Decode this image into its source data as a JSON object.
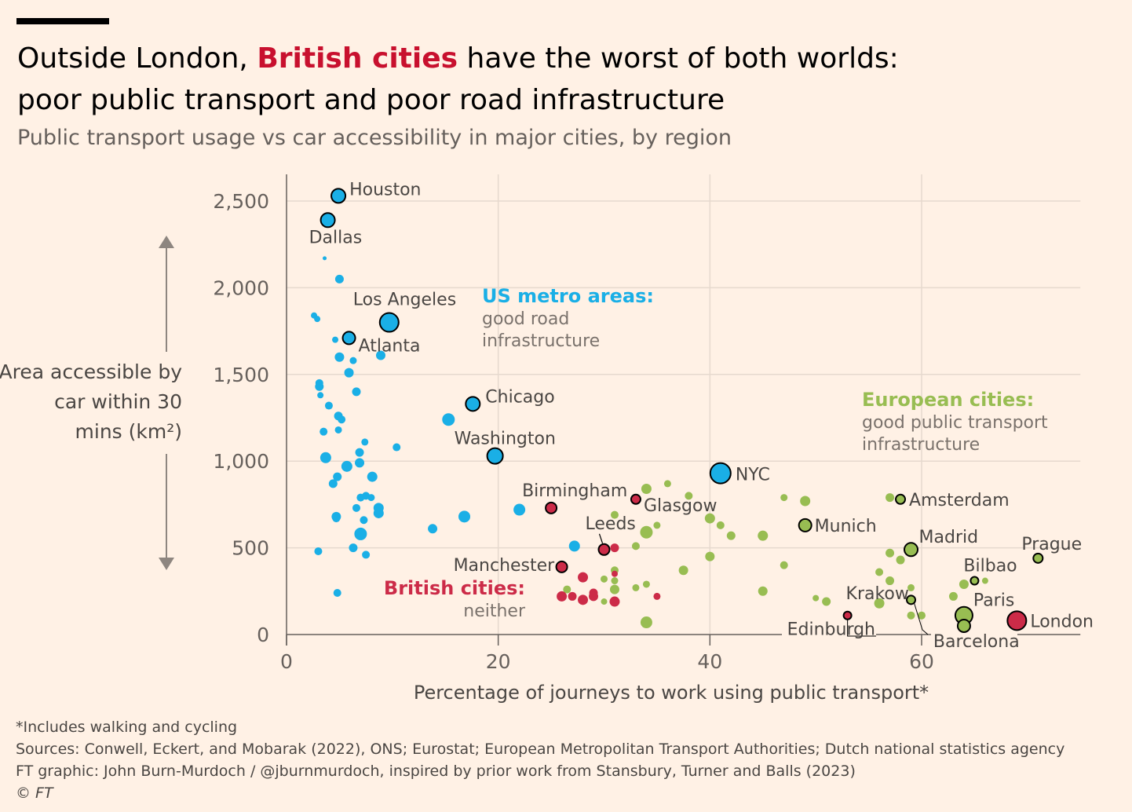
{
  "title": {
    "line1_before": "Outside London, ",
    "line1_highlight": "British cities",
    "line1_after": " have the worst of both worlds:",
    "line2": "poor public transport and poor road infrastructure"
  },
  "subtitle": "Public transport usage vs car accessibility in major cities, by region",
  "footer": {
    "note": "*Includes walking and cycling",
    "sources": "Sources: Conwell, Eckert, and Mobarak (2022), ONS; Eurostat; European Metropolitan Transport Authorities; Dutch national statistics agency",
    "credit": "FT graphic: John Burn-Murdoch / @jburnmurdoch, inspired by prior work from Stansbury, Turner and Balls (2023)",
    "copyright": "© FT"
  },
  "colors": {
    "background": "#FFF1E5",
    "us": "#1AAFE6",
    "uk": "#CC2B48",
    "europe": "#98BD52",
    "grid": "#E6D9CE",
    "axis": "#66605C",
    "text": "#4A4643"
  },
  "chart_data": {
    "type": "scatter",
    "title": "Outside London, British cities have the worst of both worlds: poor public transport and poor road infrastructure",
    "xlabel": "Percentage of journeys to work using public transport*",
    "ylabel": "Area accessible by car within 30 mins (km²)",
    "xlim": [
      0,
      75
    ],
    "ylim": [
      0,
      2650
    ],
    "xticks": [
      0,
      20,
      40,
      60
    ],
    "yticks": [
      0,
      500,
      1000,
      1500,
      2000,
      2500
    ],
    "xtick_labels": [
      "0",
      "20",
      "40",
      "60"
    ],
    "ytick_labels": [
      "0",
      "500",
      "1,000",
      "1,500",
      "2,000",
      "2,500"
    ],
    "grid": true,
    "region_labels": [
      {
        "region": "us",
        "heading": "US metro areas:",
        "lines": [
          "good road",
          "infrastructure"
        ]
      },
      {
        "region": "europe",
        "heading": "European cities:",
        "lines": [
          "good public transport",
          "infrastructure"
        ]
      },
      {
        "region": "uk",
        "heading": "British cities:",
        "lines": [
          "neither"
        ]
      }
    ],
    "series": [
      {
        "name": "US metro areas",
        "region": "us",
        "points": [
          {
            "x": 4.9,
            "y": 2530,
            "r": 9,
            "label": "Houston"
          },
          {
            "x": 3.9,
            "y": 2390,
            "r": 9,
            "label": "Dallas"
          },
          {
            "x": 9.7,
            "y": 1800,
            "r": 12,
            "label": "Los Angeles"
          },
          {
            "x": 5.9,
            "y": 1710,
            "r": 8,
            "label": "Atlanta"
          },
          {
            "x": 17.6,
            "y": 1330,
            "r": 9,
            "label": "Chicago"
          },
          {
            "x": 19.7,
            "y": 1030,
            "r": 10,
            "label": "Washington"
          },
          {
            "x": 41.0,
            "y": 930,
            "r": 13,
            "label": "NYC"
          },
          {
            "x": 3.6,
            "y": 2170,
            "r": 2.5
          },
          {
            "x": 5.0,
            "y": 2050,
            "r": 5.5
          },
          {
            "x": 2.6,
            "y": 1840,
            "r": 4
          },
          {
            "x": 2.9,
            "y": 1820,
            "r": 4
          },
          {
            "x": 4.6,
            "y": 1700,
            "r": 4
          },
          {
            "x": 8.9,
            "y": 1610,
            "r": 6
          },
          {
            "x": 5.0,
            "y": 1600,
            "r": 6
          },
          {
            "x": 6.3,
            "y": 1580,
            "r": 4.5
          },
          {
            "x": 5.9,
            "y": 1510,
            "r": 6
          },
          {
            "x": 3.1,
            "y": 1430,
            "r": 5.5
          },
          {
            "x": 3.1,
            "y": 1450,
            "r": 5
          },
          {
            "x": 6.6,
            "y": 1400,
            "r": 5.5
          },
          {
            "x": 3.2,
            "y": 1380,
            "r": 4
          },
          {
            "x": 4.0,
            "y": 1320,
            "r": 5
          },
          {
            "x": 4.9,
            "y": 1260,
            "r": 5.5
          },
          {
            "x": 5.2,
            "y": 1240,
            "r": 5
          },
          {
            "x": 15.3,
            "y": 1240,
            "r": 8
          },
          {
            "x": 3.5,
            "y": 1170,
            "r": 5
          },
          {
            "x": 4.9,
            "y": 1180,
            "r": 4.5
          },
          {
            "x": 7.4,
            "y": 1110,
            "r": 4.5
          },
          {
            "x": 10.4,
            "y": 1080,
            "r": 5
          },
          {
            "x": 6.9,
            "y": 1050,
            "r": 5.5
          },
          {
            "x": 3.7,
            "y": 1020,
            "r": 7
          },
          {
            "x": 6.9,
            "y": 990,
            "r": 6
          },
          {
            "x": 5.7,
            "y": 970,
            "r": 7
          },
          {
            "x": 4.8,
            "y": 910,
            "r": 5.5
          },
          {
            "x": 8.1,
            "y": 910,
            "r": 6.5
          },
          {
            "x": 4.4,
            "y": 870,
            "r": 5.5
          },
          {
            "x": 7.0,
            "y": 790,
            "r": 5
          },
          {
            "x": 7.5,
            "y": 800,
            "r": 5
          },
          {
            "x": 8.0,
            "y": 790,
            "r": 4.5
          },
          {
            "x": 6.6,
            "y": 730,
            "r": 5
          },
          {
            "x": 8.7,
            "y": 730,
            "r": 6.5
          },
          {
            "x": 8.7,
            "y": 700,
            "r": 6.5
          },
          {
            "x": 4.7,
            "y": 680,
            "r": 6
          },
          {
            "x": 4.7,
            "y": 670,
            "r": 5
          },
          {
            "x": 7.3,
            "y": 660,
            "r": 5
          },
          {
            "x": 16.8,
            "y": 680,
            "r": 7.5
          },
          {
            "x": 22.0,
            "y": 720,
            "r": 7.5
          },
          {
            "x": 13.8,
            "y": 610,
            "r": 6
          },
          {
            "x": 7.0,
            "y": 580,
            "r": 8
          },
          {
            "x": 6.3,
            "y": 500,
            "r": 5.5
          },
          {
            "x": 3.0,
            "y": 480,
            "r": 5
          },
          {
            "x": 7.5,
            "y": 460,
            "r": 5
          },
          {
            "x": 4.8,
            "y": 240,
            "r": 5
          },
          {
            "x": 27.2,
            "y": 510,
            "r": 7
          }
        ]
      },
      {
        "name": "British cities",
        "region": "uk",
        "points": [
          {
            "x": 25.0,
            "y": 730,
            "r": 7,
            "label": "Birmingham"
          },
          {
            "x": 33.0,
            "y": 780,
            "r": 6,
            "label": "Glasgow"
          },
          {
            "x": 30.0,
            "y": 490,
            "r": 7,
            "label": "Leeds"
          },
          {
            "x": 26.0,
            "y": 390,
            "r": 7,
            "label": "Manchester"
          },
          {
            "x": 69.0,
            "y": 80,
            "r": 12,
            "label": "London"
          },
          {
            "x": 53.0,
            "y": 110,
            "r": 5,
            "label": "Edinburgh"
          },
          {
            "x": 31.0,
            "y": 500,
            "r": 5.5
          },
          {
            "x": 31.0,
            "y": 350,
            "r": 4
          },
          {
            "x": 28.0,
            "y": 330,
            "r": 6.5
          },
          {
            "x": 29.0,
            "y": 240,
            "r": 5.5
          },
          {
            "x": 26.0,
            "y": 220,
            "r": 6.5
          },
          {
            "x": 27.0,
            "y": 220,
            "r": 5.5
          },
          {
            "x": 28.0,
            "y": 200,
            "r": 6.5
          },
          {
            "x": 29.0,
            "y": 220,
            "r": 6
          },
          {
            "x": 31.0,
            "y": 190,
            "r": 6.5
          },
          {
            "x": 35.0,
            "y": 220,
            "r": 4.5
          }
        ]
      },
      {
        "name": "European cities",
        "region": "europe",
        "points": [
          {
            "x": 58.0,
            "y": 780,
            "r": 6,
            "label": "Amsterdam"
          },
          {
            "x": 49.0,
            "y": 630,
            "r": 8,
            "label": "Munich"
          },
          {
            "x": 59.0,
            "y": 490,
            "r": 8.5,
            "label": "Madrid"
          },
          {
            "x": 71.0,
            "y": 440,
            "r": 6,
            "label": "Prague"
          },
          {
            "x": 65.0,
            "y": 310,
            "r": 5,
            "label": "Bilbao"
          },
          {
            "x": 59.0,
            "y": 200,
            "r": 5.5,
            "label": "Krakow"
          },
          {
            "x": 64.0,
            "y": 110,
            "r": 11,
            "label": "Paris"
          },
          {
            "x": 64.0,
            "y": 50,
            "r": 8,
            "label": "Barcelona"
          },
          {
            "x": 34.0,
            "y": 840,
            "r": 6.5
          },
          {
            "x": 36.0,
            "y": 870,
            "r": 4.5
          },
          {
            "x": 38.0,
            "y": 800,
            "r": 5
          },
          {
            "x": 47.0,
            "y": 790,
            "r": 4.5
          },
          {
            "x": 49.0,
            "y": 770,
            "r": 6.5
          },
          {
            "x": 57.0,
            "y": 790,
            "r": 5.5
          },
          {
            "x": 31.0,
            "y": 690,
            "r": 5
          },
          {
            "x": 40.0,
            "y": 670,
            "r": 6.5
          },
          {
            "x": 41.0,
            "y": 630,
            "r": 5
          },
          {
            "x": 35.0,
            "y": 630,
            "r": 4.5
          },
          {
            "x": 34.0,
            "y": 590,
            "r": 8
          },
          {
            "x": 42.0,
            "y": 570,
            "r": 5.5
          },
          {
            "x": 45.0,
            "y": 570,
            "r": 6.5
          },
          {
            "x": 33.0,
            "y": 510,
            "r": 5
          },
          {
            "x": 40.0,
            "y": 450,
            "r": 6
          },
          {
            "x": 57.0,
            "y": 470,
            "r": 5.5
          },
          {
            "x": 58.0,
            "y": 430,
            "r": 5.5
          },
          {
            "x": 47.0,
            "y": 400,
            "r": 5
          },
          {
            "x": 31.0,
            "y": 370,
            "r": 5
          },
          {
            "x": 37.5,
            "y": 370,
            "r": 6
          },
          {
            "x": 56.0,
            "y": 360,
            "r": 5
          },
          {
            "x": 30.0,
            "y": 320,
            "r": 4.5
          },
          {
            "x": 31.0,
            "y": 310,
            "r": 4.5
          },
          {
            "x": 34.0,
            "y": 290,
            "r": 4.5
          },
          {
            "x": 57.0,
            "y": 310,
            "r": 5.5
          },
          {
            "x": 33.0,
            "y": 270,
            "r": 4.5
          },
          {
            "x": 31.0,
            "y": 260,
            "r": 6
          },
          {
            "x": 26.5,
            "y": 260,
            "r": 5
          },
          {
            "x": 45.0,
            "y": 250,
            "r": 6
          },
          {
            "x": 59.0,
            "y": 270,
            "r": 4.5
          },
          {
            "x": 64.0,
            "y": 290,
            "r": 6
          },
          {
            "x": 66.0,
            "y": 310,
            "r": 4
          },
          {
            "x": 63.0,
            "y": 220,
            "r": 5.5
          },
          {
            "x": 50.0,
            "y": 210,
            "r": 4
          },
          {
            "x": 51.0,
            "y": 190,
            "r": 5.5
          },
          {
            "x": 56.0,
            "y": 180,
            "r": 6.5
          },
          {
            "x": 59.0,
            "y": 110,
            "r": 5
          },
          {
            "x": 60.0,
            "y": 110,
            "r": 5
          },
          {
            "x": 30.0,
            "y": 190,
            "r": 4
          },
          {
            "x": 34.0,
            "y": 70,
            "r": 7.5
          }
        ]
      }
    ]
  }
}
